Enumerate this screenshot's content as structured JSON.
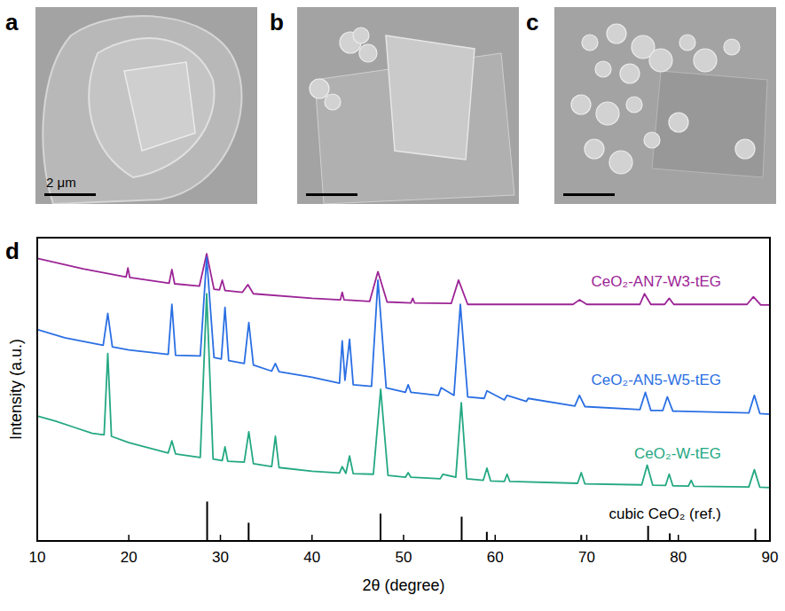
{
  "figure": {
    "panel_labels": [
      "a",
      "b",
      "c",
      "d"
    ],
    "scale_bar_label": "2 μm"
  },
  "chart_data": {
    "type": "line",
    "x_label": "2θ (degree)",
    "y_label": "Intensity (a.u.)",
    "xlim": [
      10,
      90
    ],
    "xticks": [
      10,
      20,
      30,
      40,
      50,
      60,
      70,
      80,
      90
    ],
    "ylim": [
      0,
      100
    ],
    "tick_labels": "x",
    "grid": false,
    "series": [
      {
        "name": "CeO₂-AN7-W3-tEG",
        "color": "#9c2496",
        "x": [
          10,
          15,
          19.7,
          19.9,
          20.1,
          24.4,
          24.7,
          25,
          27.7,
          28.5,
          29.3,
          29.9,
          30.2,
          30.5,
          32.4,
          33,
          33.6,
          40,
          43.1,
          43.3,
          43.5,
          46.3,
          47.2,
          48.2,
          50.8,
          51,
          51.2,
          55.2,
          56,
          57,
          60,
          68.5,
          69.2,
          70,
          75.8,
          76.3,
          77,
          78.5,
          79,
          79.5,
          87.5,
          88.2,
          89,
          90
        ],
        "values": [
          93.2,
          89.7,
          87,
          90,
          86.9,
          85,
          89.5,
          84.8,
          84,
          94.7,
          83,
          82.8,
          86,
          82.6,
          82,
          84.5,
          81.5,
          80,
          79.5,
          82,
          79.5,
          79,
          88.8,
          78.8,
          78.5,
          80,
          78.5,
          78.3,
          86,
          78,
          78,
          78,
          79.5,
          78,
          78,
          81.5,
          78,
          78,
          80,
          78,
          78,
          80.5,
          77.8,
          77.8
        ]
      },
      {
        "name": "CeO₂-AN5-W5-tEG",
        "color": "#2a6fe3",
        "x": [
          10,
          13,
          17.2,
          17.7,
          18.2,
          20,
          24.3,
          24.7,
          25.1,
          27.8,
          28.5,
          29.3,
          30.1,
          30.5,
          30.9,
          32.6,
          33.1,
          33.6,
          35.6,
          36,
          36.4,
          40,
          43,
          43.3,
          43.6,
          44.1,
          44.5,
          46.5,
          47.2,
          48.1,
          50.2,
          50.5,
          50.8,
          53.8,
          54.1,
          55.5,
          56.2,
          57,
          58.8,
          59.1,
          61,
          61.3,
          63.4,
          63.6,
          68.7,
          69.2,
          69.8,
          75.8,
          76.4,
          77,
          78.3,
          78.8,
          79.4,
          87.7,
          88.3,
          88.9,
          90
        ],
        "values": [
          69.7,
          67,
          64.5,
          75,
          64,
          63,
          61.5,
          78,
          61.2,
          61,
          93.5,
          60.5,
          60,
          77,
          59.5,
          58.5,
          72,
          58,
          56,
          58.5,
          55.8,
          54,
          52,
          66,
          53,
          66.5,
          51.5,
          51,
          86,
          50.5,
          49,
          51.5,
          49,
          48,
          50.5,
          48,
          78,
          47.5,
          47,
          49.5,
          46.5,
          48,
          46,
          47,
          44.5,
          48,
          44.3,
          43.3,
          49,
          43,
          43,
          47.5,
          42.8,
          42.2,
          48,
          42,
          41.8
        ]
      },
      {
        "name": "CeO₂-W-tEG",
        "color": "#24a882",
        "x": [
          10,
          12,
          14,
          16,
          17.3,
          17.7,
          18.1,
          20,
          24.3,
          24.7,
          25.1,
          27.8,
          28.5,
          29.2,
          30.2,
          30.5,
          30.8,
          32.6,
          33.1,
          33.6,
          35.6,
          36,
          36.4,
          40,
          43,
          43.3,
          43.7,
          44.1,
          44.5,
          46.7,
          47.5,
          48.3,
          50.2,
          50.5,
          50.8,
          54,
          54.3,
          55.7,
          56.3,
          56.9,
          58.7,
          59.1,
          59.5,
          61,
          61.3,
          61.6,
          69,
          69.4,
          69.8,
          76,
          76.6,
          77.2,
          78.6,
          79,
          79.4,
          81.1,
          81.4,
          81.7,
          87.7,
          88.3,
          88.9,
          90
        ],
        "values": [
          41.2,
          39.5,
          37.5,
          35.5,
          35,
          61.8,
          34.5,
          32.4,
          29,
          33,
          28.7,
          27.5,
          81.5,
          27,
          26.5,
          31,
          26.3,
          26,
          36,
          25.5,
          24.5,
          34.5,
          24.2,
          23,
          22.4,
          24.5,
          22.3,
          28,
          22.2,
          22,
          50,
          21.6,
          21,
          22.5,
          21,
          20.5,
          22,
          21,
          45.6,
          20.5,
          20,
          24,
          19.8,
          19.6,
          22,
          19.6,
          19,
          22.5,
          18.8,
          18.5,
          25,
          18.4,
          18.3,
          22,
          18.2,
          18.1,
          20,
          18,
          17.8,
          23.5,
          17.7,
          17.6
        ]
      },
      {
        "name": "cubic CeO₂ (ref.)",
        "color": "#000000",
        "type": "stick",
        "x": [
          28.55,
          33.08,
          47.48,
          56.34,
          59.09,
          69.4,
          76.7,
          79.07,
          88.41
        ],
        "values": [
          13,
          6,
          9,
          8,
          3,
          2,
          5,
          2.5,
          4
        ]
      }
    ]
  }
}
